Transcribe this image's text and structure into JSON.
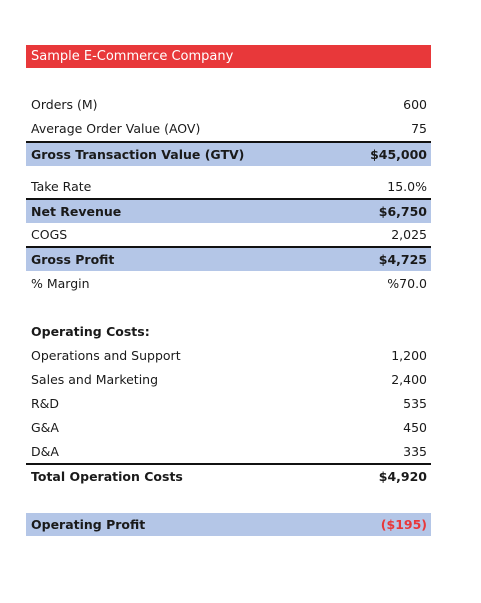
{
  "header": {
    "title": "Sample E-Commerce Company"
  },
  "table": {
    "rows": [
      [
        "Orders (M)",
        "600"
      ],
      [
        "Average Order Value (AOV)",
        "75"
      ],
      [
        "Gross Transaction Value (GTV)",
        "$45,000"
      ],
      [
        "Take Rate",
        "15.0%"
      ],
      [
        "Net Revenue",
        "$6,750"
      ],
      [
        "COGS",
        "2,025"
      ],
      [
        "Gross Profit",
        "$4,725"
      ],
      [
        "% Margin",
        "%70.0"
      ],
      [
        "Operating Costs:"
      ],
      [
        "Operations and Support",
        "1,200"
      ],
      [
        "Sales and Marketing",
        "2,400"
      ],
      [
        "R&D",
        "535"
      ],
      [
        "G&A",
        "450"
      ],
      [
        "D&A",
        "335"
      ],
      [
        "Total Operation Costs",
        "$4,920"
      ],
      [
        "Operating Profit",
        "($195)"
      ]
    ]
  }
}
